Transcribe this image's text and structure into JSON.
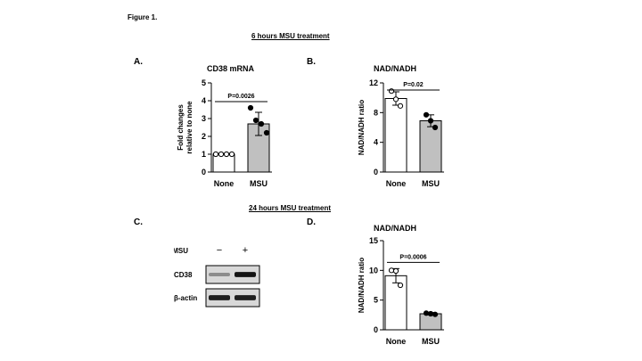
{
  "figure_title": "Figure 1.",
  "sections": {
    "six_hours": "6 hours MSU treatment",
    "twentyfour_hours": "24 hours MSU treatment"
  },
  "panels": {
    "a": {
      "letter": "A.",
      "title": "CD38 mRNA"
    },
    "b": {
      "letter": "B.",
      "title": "NAD/NADH"
    },
    "c": {
      "letter": "C."
    },
    "d": {
      "letter": "D.",
      "title": "NAD/NADH"
    }
  },
  "chart_data": [
    {
      "id": "A",
      "type": "bar",
      "title": "CD38 mRNA",
      "ylabel": "Fold changes relative to none",
      "ylabel_lines": [
        "Fold changes",
        "relative to none"
      ],
      "ylim": [
        0,
        5
      ],
      "yticks": [
        0,
        1,
        2,
        3,
        4,
        5
      ],
      "categories": [
        "None",
        "MSU"
      ],
      "values": [
        1.0,
        2.7
      ],
      "errors": [
        0,
        0.65
      ],
      "points": [
        [
          1.0,
          1.0,
          1.0,
          1.0
        ],
        [
          3.6,
          2.9,
          2.7,
          2.2
        ]
      ],
      "bar_colors": [
        "#ffffff",
        "#c0c0c0"
      ],
      "point_fills": [
        "#ffffff",
        "#000000"
      ],
      "significance": "P=0.0026"
    },
    {
      "id": "B",
      "type": "bar",
      "title": "NAD/NADH",
      "ylabel": "NAD/NADH ratio",
      "ylim": [
        0,
        12
      ],
      "yticks": [
        0,
        4,
        8,
        12
      ],
      "categories": [
        "None",
        "MSU"
      ],
      "values": [
        9.9,
        6.9
      ],
      "errors": [
        0.9,
        0.8
      ],
      "points": [
        [
          10.9,
          9.8,
          8.9
        ],
        [
          7.7,
          6.9,
          6.0
        ]
      ],
      "bar_colors": [
        "#ffffff",
        "#c0c0c0"
      ],
      "point_fills": [
        "#ffffff",
        "#000000"
      ],
      "significance": "P=0.02"
    },
    {
      "id": "D",
      "type": "bar",
      "title": "NAD/NADH",
      "ylabel": "NAD/NADH ratio",
      "ylim": [
        0,
        15
      ],
      "yticks": [
        0,
        5,
        10,
        15
      ],
      "categories": [
        "None",
        "MSU"
      ],
      "values": [
        9.1,
        2.7
      ],
      "errors": [
        1.2,
        0.2
      ],
      "points": [
        [
          10.0,
          9.9,
          7.5
        ],
        [
          2.8,
          2.7,
          2.6
        ]
      ],
      "bar_colors": [
        "#ffffff",
        "#c0c0c0"
      ],
      "point_fills": [
        "#ffffff",
        "#000000"
      ],
      "significance": "P=0.0006"
    }
  ],
  "western_blot": {
    "treatment_label": "MSU",
    "lanes": [
      "−",
      "+"
    ],
    "rows": [
      {
        "label": "CD38",
        "band_intensity": [
          0.35,
          0.95
        ]
      },
      {
        "label": "β-actin",
        "band_intensity": [
          0.9,
          0.9
        ]
      }
    ]
  }
}
